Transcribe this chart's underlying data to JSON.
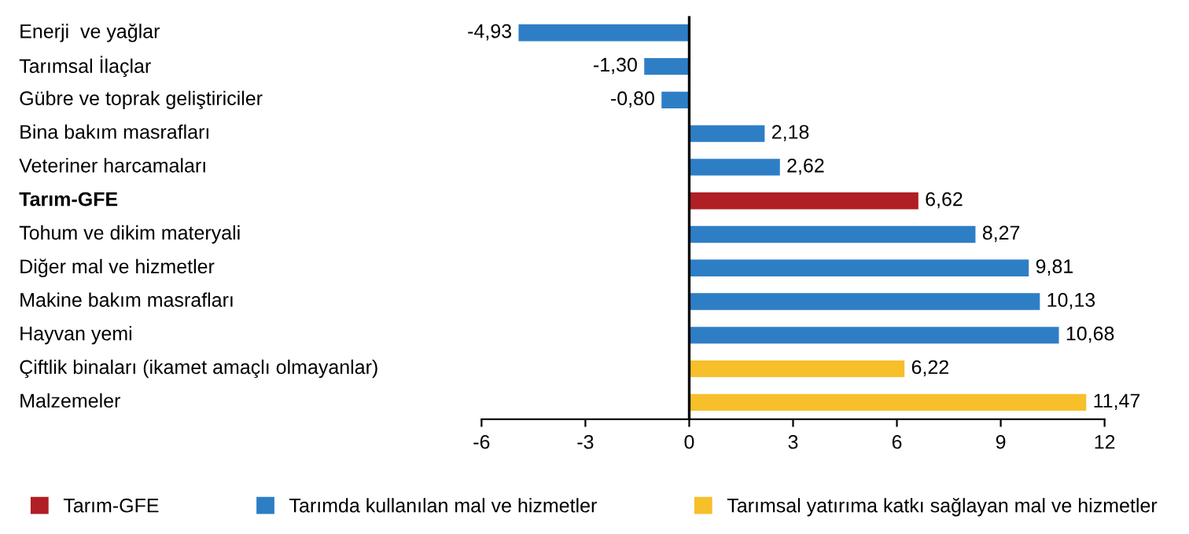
{
  "chart_data": {
    "type": "bar",
    "orientation": "horizontal",
    "stacked": true,
    "categories": [
      "Enerji  ve yağlar",
      "Tarımsal İlaçlar",
      "Gübre ve toprak geliştiriciler",
      "Bina bakım masrafları",
      "Veteriner harcamaları",
      "Tarım-GFE",
      "Tohum ve dikim materyali",
      "Diğer mal ve hizmetler",
      "Makine bakım masrafları",
      "Hayvan yemi",
      "Çiftlik binaları (ikamet amaçlı olmayanlar)",
      "Malzemeler"
    ],
    "series": [
      {
        "name": "Tarım-GFE",
        "color": "#b01f24",
        "values": [
          null,
          null,
          null,
          null,
          null,
          6.62,
          null,
          null,
          null,
          null,
          null,
          null
        ],
        "value_labels": [
          null,
          null,
          null,
          null,
          null,
          "6,62",
          null,
          null,
          null,
          null,
          null,
          null
        ]
      },
      {
        "name": "Tarımda kullanılan mal ve hizmetler",
        "color": "#2e7ec6",
        "values": [
          -4.93,
          -1.3,
          -0.8,
          2.18,
          2.62,
          null,
          8.27,
          9.81,
          10.13,
          10.68,
          null,
          null
        ],
        "value_labels": [
          "-4,93",
          "-1,30",
          "-0,80",
          "2,18",
          "2,62",
          null,
          "8,27",
          "9,81",
          "10,13",
          "10,68",
          null,
          null
        ]
      },
      {
        "name": "Tarımsal yatırıma katkı sağlayan mal ve hizmetler",
        "color": "#f7bf2a",
        "values": [
          null,
          null,
          null,
          null,
          null,
          null,
          null,
          null,
          null,
          null,
          6.22,
          11.47
        ],
        "value_labels": [
          null,
          null,
          null,
          null,
          null,
          null,
          null,
          null,
          null,
          null,
          "6,22",
          "11,47"
        ]
      }
    ],
    "xlim": [
      -6,
      12
    ],
    "xticks": [
      -6,
      -3,
      0,
      3,
      6,
      9,
      12
    ],
    "grid": false,
    "ref_lines": [
      {
        "axis": "x",
        "value": 0,
        "color": "#000000"
      }
    ],
    "legend": "bottom"
  }
}
